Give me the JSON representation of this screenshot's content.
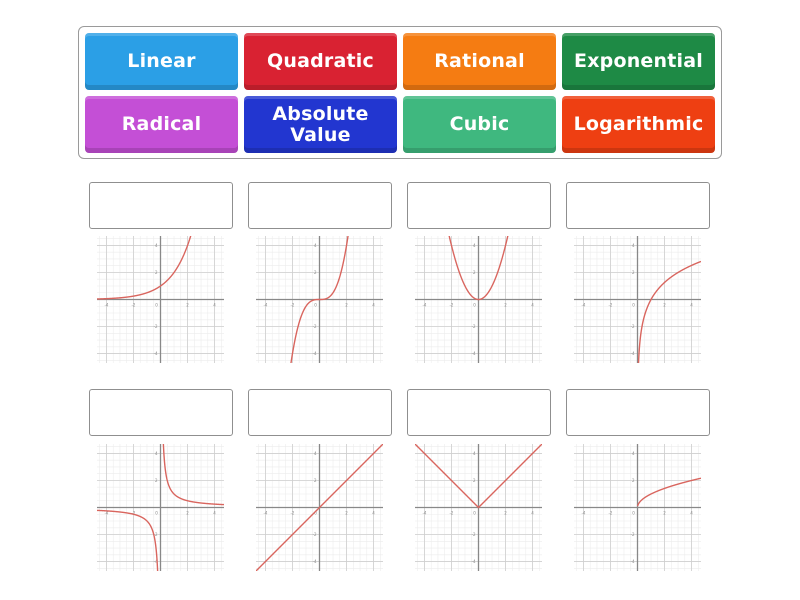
{
  "tiles": [
    {
      "id": "linear",
      "label": "Linear",
      "color": "#2b9fe6"
    },
    {
      "id": "quadratic",
      "label": "Quadratic",
      "color": "#d92232"
    },
    {
      "id": "rational",
      "label": "Rational",
      "color": "#f57c12"
    },
    {
      "id": "exponential",
      "label": "Exponential",
      "color": "#1e8a45"
    },
    {
      "id": "radical",
      "label": "Radical",
      "color": "#c44fd6"
    },
    {
      "id": "absolute-value",
      "label": "Absolute Value",
      "color": "#2236d0"
    },
    {
      "id": "cubic",
      "label": "Cubic",
      "color": "#3fb87f"
    },
    {
      "id": "logarithmic",
      "label": "Logarithmic",
      "color": "#ee3f12"
    }
  ],
  "graph_axis": {
    "tick_labels": [
      "-4",
      "-2",
      "0",
      "2",
      "4"
    ],
    "range": [
      -4.7,
      4.7
    ],
    "curve_color": "#d9655e"
  },
  "targets": [
    {
      "slot": 1,
      "drop_value": "",
      "graph": "exponential"
    },
    {
      "slot": 2,
      "drop_value": "",
      "graph": "cubic"
    },
    {
      "slot": 3,
      "drop_value": "",
      "graph": "quadratic"
    },
    {
      "slot": 4,
      "drop_value": "",
      "graph": "logarithmic"
    },
    {
      "slot": 5,
      "drop_value": "",
      "graph": "rational"
    },
    {
      "slot": 6,
      "drop_value": "",
      "graph": "linear"
    },
    {
      "slot": 7,
      "drop_value": "",
      "graph": "absolute-value"
    },
    {
      "slot": 8,
      "drop_value": "",
      "graph": "radical"
    }
  ]
}
